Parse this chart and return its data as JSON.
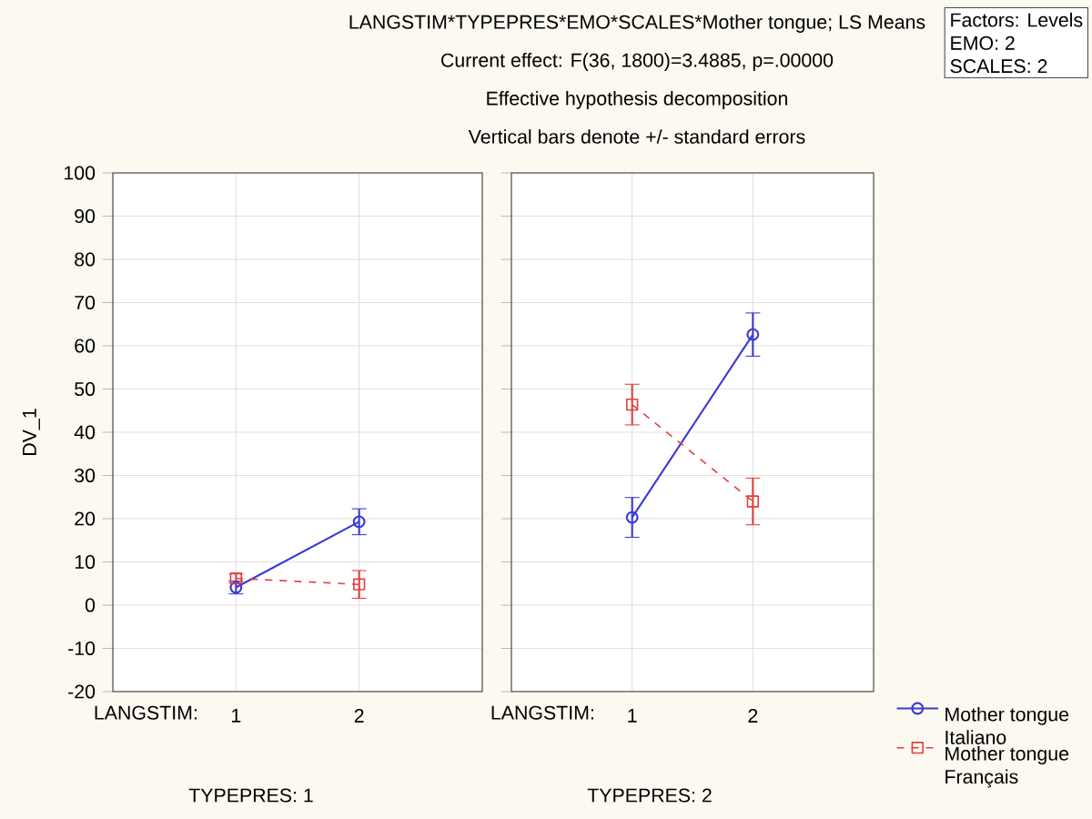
{
  "chart_data": [
    {
      "type": "line",
      "title": "LANGSTIM*TYPEPRES*EMO*SCALES*Mother tongue; LS Means",
      "xlabel": "LANGSTIM:",
      "ylabel": "DV_1",
      "annotations": [
        "Factors: Levels",
        "EMO: 2",
        "SCALES: 2",
        "TYPEPRES: 1"
      ],
      "categories": [
        "1",
        "2"
      ],
      "ylim": [
        -20,
        100
      ],
      "yticks": [
        -20,
        -10,
        0,
        10,
        20,
        30,
        40,
        50,
        60,
        70,
        80,
        90,
        100
      ],
      "grid": true,
      "series": [
        {
          "color": "#3a3ad6",
          "marker": "circle",
          "line_style": "solid",
          "values": [
            4.1,
            19.3
          ],
          "errors": [
            1.5,
            3
          ]
        },
        {
          "color": "#e04040",
          "marker": "square",
          "line_style": "dashed",
          "values": [
            6.2,
            4.8
          ],
          "errors": [
            1,
            3.2
          ]
        }
      ]
    },
    {
      "type": "line",
      "subtitle": "Current effect: F(36, 1800)=3.4885, p=.00000",
      "xlabel": "LANGSTIM:",
      "annotations": [
        "Effective hypothesis decomposition",
        "Vertical bars denote +/- standard errors",
        "TYPEPRES: 2"
      ],
      "categories": [
        "1",
        "2"
      ],
      "ylim": [
        -20,
        100
      ],
      "yticks": [
        -20,
        -10,
        0,
        10,
        20,
        30,
        40,
        50,
        60,
        70,
        80,
        90,
        100
      ],
      "grid": true,
      "tick_labels": "x",
      "legend": "bottom right",
      "series": [
        {
          "name": "Mother tongue Italiano",
          "color": "#3a3ad6",
          "marker": "circle",
          "line_style": "solid",
          "values": [
            20.3,
            62.6
          ],
          "errors": [
            4.6,
            5
          ]
        },
        {
          "name": "Mother tongue Français",
          "color": "#e04040",
          "marker": "square",
          "line_style": "dashed",
          "values": [
            46.4,
            24
          ],
          "errors": [
            4.7,
            5.4
          ]
        }
      ]
    }
  ]
}
